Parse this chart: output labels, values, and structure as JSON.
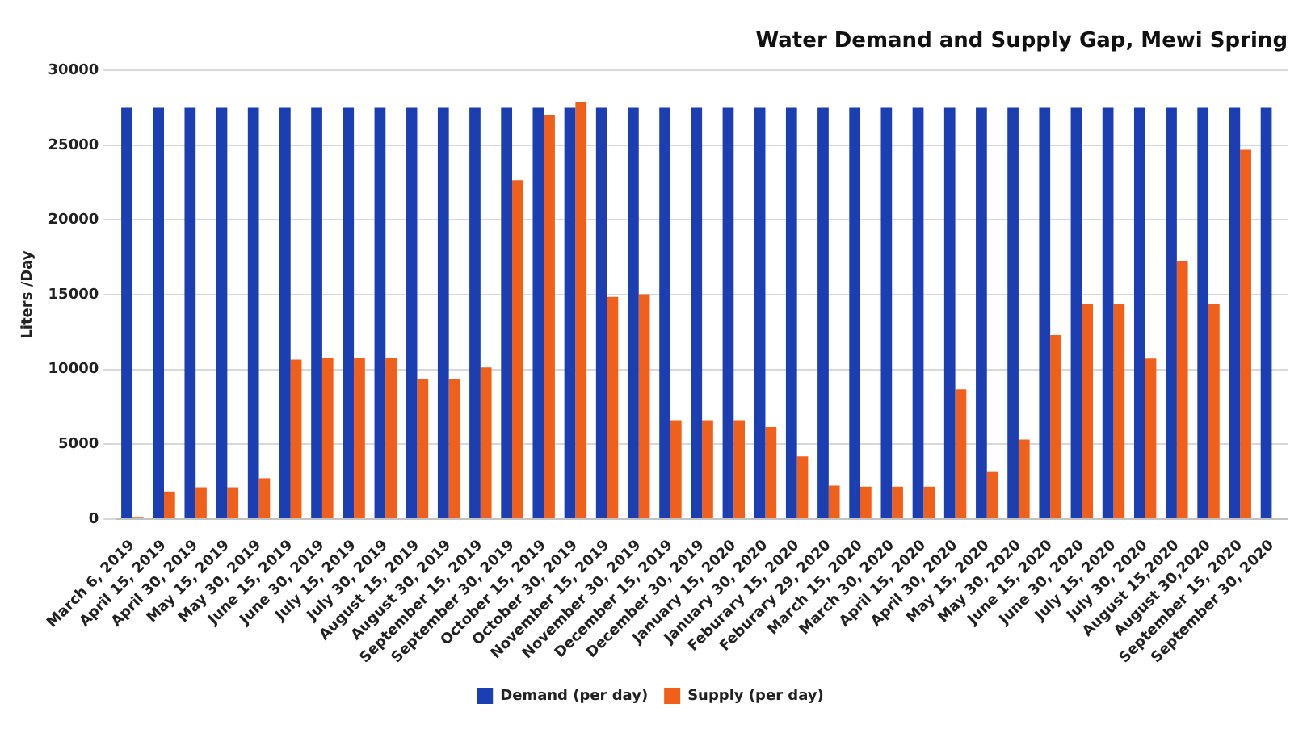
{
  "chart_data": {
    "type": "bar",
    "title": "Water Demand and Supply Gap, Mewi Spring",
    "ylabel": "Liters /Day",
    "categories": [
      "March 6, 2019",
      "April 15, 2019",
      "April 30, 2019",
      "May 15, 2019",
      "May 30, 2019",
      "June 15, 2019",
      "June 30, 2019",
      "July 15, 2019",
      "July 30, 2019",
      "August 15, 2019",
      "August 30, 2019",
      "September 15, 2019",
      "September 30, 2019",
      "October 15, 2019",
      "October 30, 2019",
      "November 15, 2019",
      "November 30, 2019",
      "December 15, 2019",
      "December 30, 2019",
      "January 15, 2020",
      "January 30, 2020",
      "Feburary 15, 2020",
      "Feburary 29, 2020",
      "March 15, 2020",
      "March 30, 2020",
      "April 15, 2020",
      "April 30, 2020",
      "May 15, 2020",
      "May 30, 2020",
      "June 15, 2020",
      "June 30, 2020",
      "July 15, 2020",
      "July 30, 2020",
      "August 15,2020",
      "August 30,2020",
      "September 15, 2020",
      "September 30, 2020"
    ],
    "series": [
      {
        "name": "Demand (per day)",
        "color": "#1b3fb3",
        "values": [
          27500,
          27500,
          27500,
          27500,
          27500,
          27500,
          27500,
          27500,
          27500,
          27500,
          27500,
          27500,
          27500,
          27500,
          27500,
          27500,
          27500,
          27500,
          27500,
          27500,
          27500,
          27500,
          27500,
          27500,
          27500,
          27500,
          27500,
          27500,
          27500,
          27500,
          27500,
          27500,
          27500,
          27500,
          27500,
          27500,
          27500
        ]
      },
      {
        "name": "Supply (per day)",
        "color": "#f0601a",
        "values": [
          100,
          1850,
          2130,
          2130,
          2730,
          10660,
          10770,
          10770,
          10770,
          9370,
          9370,
          10140,
          22660,
          27030,
          27900,
          14860,
          15030,
          6610,
          6610,
          6610,
          6150,
          4200,
          2240,
          2170,
          2170,
          2170,
          8670,
          3150,
          5310,
          12310,
          14370,
          14370,
          10730,
          17270,
          14370,
          24690,
          null
        ]
      }
    ],
    "ylim": [
      0,
      30000
    ],
    "yticks": [
      0,
      5000,
      10000,
      15000,
      20000,
      25000,
      30000
    ],
    "grid": "y",
    "legend": "bottom"
  }
}
